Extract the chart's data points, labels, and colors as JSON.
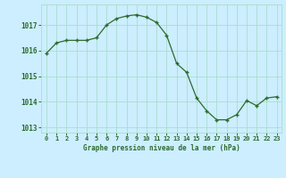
{
  "x": [
    0,
    1,
    2,
    3,
    4,
    5,
    6,
    7,
    8,
    9,
    10,
    11,
    12,
    13,
    14,
    15,
    16,
    17,
    18,
    19,
    20,
    21,
    22,
    23
  ],
  "y": [
    1015.9,
    1016.3,
    1016.4,
    1016.4,
    1016.4,
    1016.5,
    1017.0,
    1017.25,
    1017.35,
    1017.4,
    1017.3,
    1017.1,
    1016.6,
    1015.5,
    1015.15,
    1014.15,
    1013.65,
    1013.3,
    1013.3,
    1013.5,
    1014.05,
    1013.85,
    1014.15,
    1014.2
  ],
  "line_color": "#2d6a2d",
  "marker": "+",
  "marker_color": "#2d6a2d",
  "bg_color": "#cceeff",
  "grid_color": "#aaddcc",
  "xlabel": "Graphe pression niveau de la mer (hPa)",
  "xlabel_color": "#2d6a2d",
  "tick_color": "#2d6a2d",
  "ylim": [
    1012.8,
    1017.8
  ],
  "xlim": [
    -0.5,
    23.5
  ],
  "yticks": [
    1013,
    1014,
    1015,
    1016,
    1017
  ],
  "xticks": [
    0,
    1,
    2,
    3,
    4,
    5,
    6,
    7,
    8,
    9,
    10,
    11,
    12,
    13,
    14,
    15,
    16,
    17,
    18,
    19,
    20,
    21,
    22,
    23
  ],
  "xtick_labels": [
    "0",
    "1",
    "2",
    "3",
    "4",
    "5",
    "6",
    "7",
    "8",
    "9",
    "10",
    "11",
    "12",
    "13",
    "14",
    "15",
    "16",
    "17",
    "18",
    "19",
    "20",
    "21",
    "22",
    "23"
  ]
}
